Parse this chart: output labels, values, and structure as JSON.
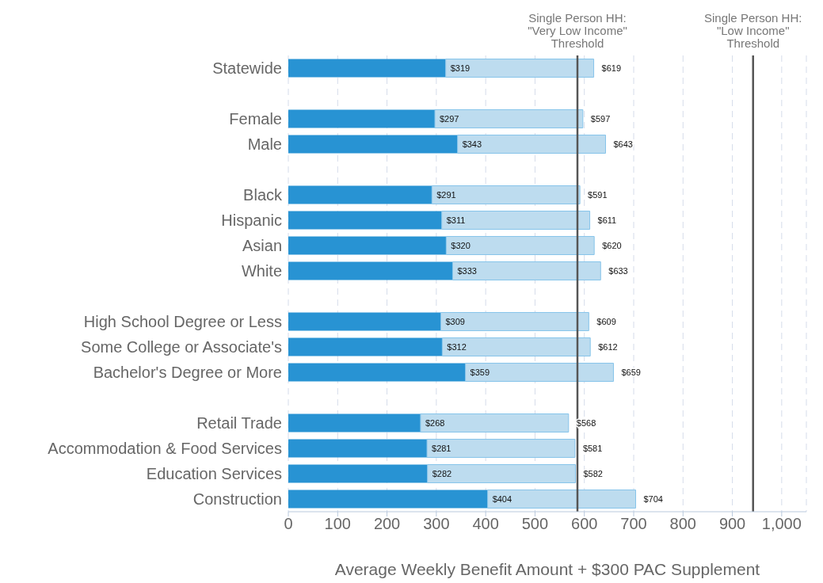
{
  "chart_data": {
    "type": "bar",
    "orientation": "horizontal",
    "stacked": true,
    "categories": [
      "Statewide",
      null,
      "Female",
      "Male",
      null,
      "Black",
      "Hispanic",
      "Asian",
      "White",
      null,
      "High School Degree or Less",
      "Some College or Associate's",
      "Bachelor's Degree or More",
      null,
      "Retail Trade",
      "Accommodation & Food Services",
      "Education Services",
      "Construction"
    ],
    "series": [
      {
        "color": "#2893d3",
        "values": [
          319,
          null,
          297,
          343,
          null,
          291,
          311,
          320,
          333,
          null,
          309,
          312,
          359,
          null,
          268,
          281,
          282,
          404
        ],
        "value_labels": [
          "$319",
          null,
          "$297",
          "$343",
          null,
          "$291",
          "$311",
          "$320",
          "$333",
          null,
          "$309",
          "$312",
          "$359",
          null,
          "$268",
          "$281",
          "$282",
          "$404"
        ]
      },
      {
        "color": "#bddcef",
        "values": [
          300,
          null,
          300,
          300,
          null,
          300,
          300,
          300,
          300,
          null,
          300,
          300,
          300,
          null,
          300,
          300,
          300,
          300
        ]
      }
    ],
    "totals": [
      "$619",
      null,
      "$597",
      "$643",
      null,
      "$591",
      "$611",
      "$620",
      "$633",
      null,
      "$609",
      "$612",
      "$659",
      null,
      "$568",
      "$581",
      "$582",
      "$704"
    ],
    "xlabel": "Average Weekly Benefit Amount + $300 PAC Supplement",
    "xlim": [
      0,
      1050
    ],
    "xticks": [
      0,
      100,
      200,
      300,
      400,
      500,
      600,
      700,
      800,
      900,
      {
        "value": 1000,
        "label": "1,000"
      }
    ],
    "grid": "x",
    "ref_lines": [
      {
        "axis": "x",
        "value": 586,
        "label": "Single Person HH:\n\"Very Low Income\"\nThreshold",
        "color": "#555555"
      },
      {
        "axis": "x",
        "value": 942,
        "label": "Single Person HH:\n\"Low Income\"\nThreshold",
        "color": "#555555"
      }
    ]
  }
}
